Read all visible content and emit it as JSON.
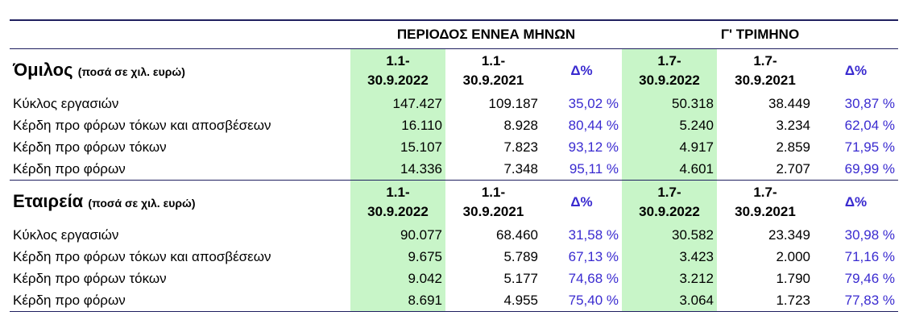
{
  "header": {
    "period_9m": "ΠΕΡΙΟΔΟΣ ΕΝΝΕΑ ΜΗΝΩΝ",
    "quarter": "Γ' ΤΡΙΜΗΝΟ"
  },
  "sections": [
    {
      "title": "Όμιλος",
      "note": "(ποσά σε χιλ. ευρώ)",
      "columns": [
        "1.1-\n30.9.2022",
        "1.1-\n30.9.2021",
        "Δ%",
        "1.7-\n30.9.2022",
        "1.7-\n30.9.2021",
        "Δ%"
      ],
      "rows": [
        [
          "Κύκλος εργασιών",
          "147.427",
          "109.187",
          "35,02 %",
          "50.318",
          "38.449",
          "30,87 %"
        ],
        [
          "Κέρδη προ φόρων τόκων και αποσβέσεων",
          "16.110",
          "8.928",
          "80,44 %",
          "5.240",
          "3.234",
          "62,04 %"
        ],
        [
          "Κέρδη προ φόρων τόκων",
          "15.107",
          "7.823",
          "93,12 %",
          "4.917",
          "2.859",
          "71,95 %"
        ],
        [
          "Κέρδη προ φόρων",
          "14.336",
          "7.348",
          "95,11 %",
          "4.601",
          "2.707",
          "69,99 %"
        ]
      ]
    },
    {
      "title": "Εταιρεία",
      "note": "(ποσά σε χιλ. ευρώ)",
      "columns": [
        "1.1-\n30.9.2022",
        "1.1-\n30.9.2021",
        "Δ%",
        "1.7-\n30.9.2022",
        "1.7-\n30.9.2021",
        "Δ%"
      ],
      "rows": [
        [
          "Κύκλος εργασιών",
          "90.077",
          "68.460",
          "31,58 %",
          "30.582",
          "23.349",
          "30,98 %"
        ],
        [
          "Κέρδη προ φόρων τόκων και αποσβέσεων",
          "9.675",
          "5.789",
          "67,13 %",
          "3.423",
          "2.000",
          "71,16 %"
        ],
        [
          "Κέρδη προ φόρων τόκων",
          "9.042",
          "5.177",
          "74,68 %",
          "3.212",
          "1.790",
          "79,46 %"
        ],
        [
          "Κέρδη προ φόρων",
          "8.691",
          "4.955",
          "75,40 %",
          "3.064",
          "1.723",
          "77,83 %"
        ]
      ]
    }
  ]
}
